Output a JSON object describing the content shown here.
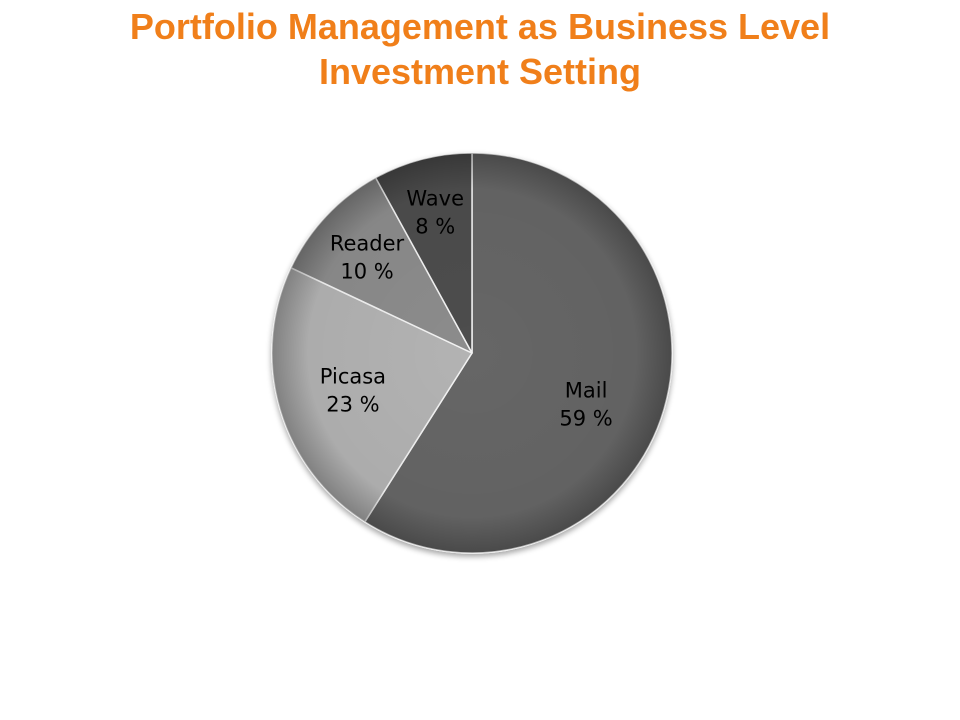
{
  "slide": {
    "title_line1": "Portfolio Management as Business Level",
    "title_line2": "Investment Setting",
    "title_color": "#F07F1A"
  },
  "chart_data": {
    "type": "pie",
    "title": "",
    "slices": [
      {
        "label": "Mail",
        "value": 59,
        "value_label": "59 %",
        "color": "#666666"
      },
      {
        "label": "Picasa",
        "value": 23,
        "value_label": "23 %",
        "color": "#B3B3B3"
      },
      {
        "label": "Reader",
        "value": 10,
        "value_label": "10 %",
        "color": "#8C8C8C"
      },
      {
        "label": "Wave",
        "value": 8,
        "value_label": "8 %",
        "color": "#4D4D4D"
      }
    ],
    "start": "12 o'clock",
    "direction": "clockwise",
    "legend": "none",
    "style": "3d-shaded"
  }
}
